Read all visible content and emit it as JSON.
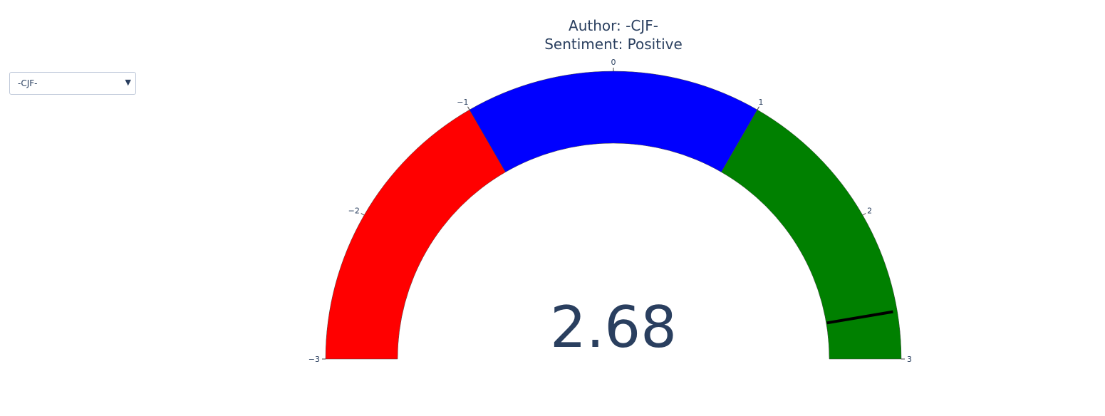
{
  "dropdown": {
    "selected": "-CJF-",
    "arrow_icon": "triangle-down-icon"
  },
  "chart_data": {
    "type": "gauge",
    "title_lines": [
      "Author: -CJF-",
      "Sentiment: Positive"
    ],
    "value": 2.68,
    "value_label": "2.68",
    "range": [
      -3,
      3
    ],
    "ticks": [
      -3,
      -2,
      -1,
      0,
      1,
      2,
      3
    ],
    "tick_labels": [
      "−3",
      "−2",
      "−1",
      "0",
      "1",
      "2",
      "3"
    ],
    "steps": [
      {
        "range": [
          -3,
          -1
        ],
        "color": "#ff0000"
      },
      {
        "range": [
          -1,
          1
        ],
        "color": "#0000ff"
      },
      {
        "range": [
          1,
          3
        ],
        "color": "#008000"
      }
    ],
    "threshold": {
      "value": 2.68,
      "color": "#000000"
    }
  }
}
